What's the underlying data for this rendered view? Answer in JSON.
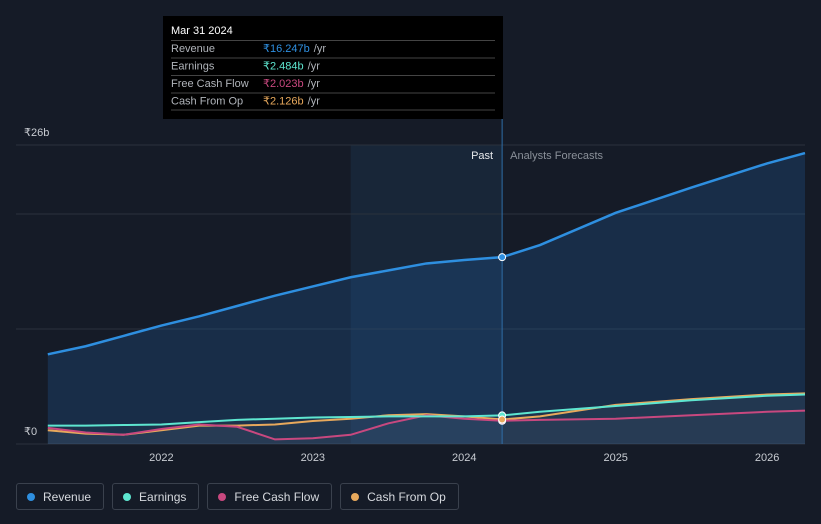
{
  "chart_data": {
    "type": "line",
    "x": [
      2021.25,
      2021.5,
      2021.75,
      2022,
      2022.25,
      2022.5,
      2022.75,
      2023,
      2023.25,
      2023.5,
      2023.75,
      2024,
      2024.25,
      2024.5,
      2025,
      2025.5,
      2026,
      2026.25
    ],
    "series": [
      {
        "name": "Revenue",
        "color": "#2e8fe0",
        "values": [
          7.8,
          8.5,
          9.4,
          10.3,
          11.1,
          12.0,
          12.9,
          13.7,
          14.5,
          15.1,
          15.7,
          16.0,
          16.247,
          17.3,
          20.1,
          22.3,
          24.4,
          25.3
        ]
      },
      {
        "name": "Earnings",
        "color": "#5ee6d0",
        "values": [
          1.6,
          1.6,
          1.65,
          1.7,
          1.9,
          2.1,
          2.2,
          2.3,
          2.35,
          2.4,
          2.4,
          2.4,
          2.484,
          2.8,
          3.3,
          3.8,
          4.2,
          4.3
        ]
      },
      {
        "name": "Free Cash Flow",
        "color": "#c8487f",
        "values": [
          1.4,
          1.0,
          0.8,
          1.3,
          1.7,
          1.5,
          0.4,
          0.5,
          0.8,
          1.8,
          2.5,
          2.2,
          2.023,
          2.1,
          2.2,
          2.5,
          2.8,
          2.9
        ]
      },
      {
        "name": "Cash From Op",
        "color": "#e8a95c",
        "values": [
          1.2,
          0.9,
          0.8,
          1.2,
          1.6,
          1.6,
          1.7,
          2.0,
          2.2,
          2.5,
          2.6,
          2.4,
          2.126,
          2.4,
          3.4,
          3.9,
          4.3,
          4.4
        ]
      }
    ],
    "xlim": [
      2021.04,
      2026.25
    ],
    "xticks": [
      2022,
      2023,
      2024,
      2025,
      2026
    ],
    "ylim": [
      0,
      26
    ],
    "yticks": [
      {
        "value": 0,
        "label": "₹0"
      },
      {
        "value": 10,
        "label": null
      },
      {
        "value": 20,
        "label": null
      },
      {
        "value": 26,
        "label": "₹26b"
      }
    ],
    "grid": true,
    "highlight_start": 2023.25,
    "forecast_start": 2024.25,
    "past_label": "Past",
    "forecast_label": "Analysts Forecasts",
    "tooltip": {
      "title": "Mar 31 2024",
      "suffix": "/yr",
      "values": [
        {
          "value": 16.247,
          "label": "₹16.247b"
        },
        {
          "value": 2.484,
          "label": "₹2.484b"
        },
        {
          "value": 2.023,
          "label": "₹2.023b"
        },
        {
          "value": 2.126,
          "label": "₹2.126b"
        }
      ]
    }
  }
}
